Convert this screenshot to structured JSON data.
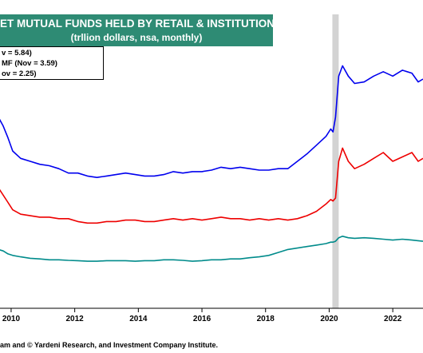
{
  "chart_data": {
    "type": "line",
    "title": "ET MUTUAL FUNDS HELD BY RETAIL & INSTITUTIONS",
    "subtitle": "(trllion dollars, nsa, monthly)",
    "legend": [
      {
        "label": "v = 5.84)",
        "color": "#0000ee"
      },
      {
        "label": "MF  (Nov = 3.59)",
        "color": "#ee0000"
      },
      {
        "label": "ov = 2.25)",
        "color": "#008b8b"
      }
    ],
    "x_ticks": [
      "2010",
      "2012",
      "2014",
      "2016",
      "2018",
      "2020",
      "2022"
    ],
    "xlim": [
      2009.6,
      2022.95
    ],
    "ylim": [
      0,
      1
    ],
    "recession_shading": [
      2020.1,
      2020.3
    ],
    "grid": false,
    "series": [
      {
        "color": "#0000ee",
        "x": [
          2009.6,
          2009.75,
          2009.9,
          2010.05,
          2010.3,
          2010.6,
          2010.9,
          2011.2,
          2011.5,
          2011.8,
          2012.1,
          2012.4,
          2012.7,
          2013.0,
          2013.3,
          2013.6,
          2013.9,
          2014.2,
          2014.5,
          2014.8,
          2015.1,
          2015.4,
          2015.7,
          2016.0,
          2016.3,
          2016.6,
          2016.9,
          2017.2,
          2017.5,
          2017.8,
          2018.1,
          2018.4,
          2018.7,
          2019.0,
          2019.3,
          2019.6,
          2019.9,
          2020.05,
          2020.12,
          2020.2,
          2020.3,
          2020.42,
          2020.6,
          2020.8,
          2021.1,
          2021.4,
          2021.7,
          2022.0,
          2022.3,
          2022.6,
          2022.8,
          2022.95
        ],
        "y": [
          0.65,
          0.62,
          0.58,
          0.535,
          0.51,
          0.5,
          0.49,
          0.485,
          0.475,
          0.46,
          0.46,
          0.45,
          0.445,
          0.45,
          0.455,
          0.46,
          0.455,
          0.45,
          0.45,
          0.455,
          0.465,
          0.46,
          0.465,
          0.465,
          0.47,
          0.48,
          0.475,
          0.48,
          0.475,
          0.47,
          0.47,
          0.475,
          0.475,
          0.5,
          0.525,
          0.555,
          0.585,
          0.61,
          0.6,
          0.65,
          0.79,
          0.825,
          0.79,
          0.765,
          0.77,
          0.79,
          0.805,
          0.79,
          0.81,
          0.8,
          0.77,
          0.78
        ]
      },
      {
        "color": "#ee0000",
        "x": [
          2009.6,
          2009.75,
          2009.9,
          2010.05,
          2010.3,
          2010.6,
          2010.9,
          2011.2,
          2011.5,
          2011.8,
          2012.1,
          2012.4,
          2012.7,
          2013.0,
          2013.3,
          2013.6,
          2013.9,
          2014.2,
          2014.5,
          2014.8,
          2015.1,
          2015.4,
          2015.7,
          2016.0,
          2016.3,
          2016.6,
          2016.9,
          2017.2,
          2017.5,
          2017.8,
          2018.1,
          2018.4,
          2018.7,
          2019.0,
          2019.3,
          2019.6,
          2019.9,
          2020.05,
          2020.12,
          2020.2,
          2020.3,
          2020.42,
          2020.6,
          2020.8,
          2021.1,
          2021.4,
          2021.7,
          2022.0,
          2022.3,
          2022.6,
          2022.8,
          2022.95
        ],
        "y": [
          0.41,
          0.385,
          0.36,
          0.335,
          0.32,
          0.315,
          0.31,
          0.31,
          0.305,
          0.305,
          0.295,
          0.29,
          0.29,
          0.295,
          0.295,
          0.3,
          0.3,
          0.295,
          0.295,
          0.3,
          0.305,
          0.3,
          0.305,
          0.3,
          0.305,
          0.31,
          0.305,
          0.305,
          0.3,
          0.305,
          0.3,
          0.305,
          0.3,
          0.305,
          0.315,
          0.33,
          0.355,
          0.37,
          0.365,
          0.375,
          0.5,
          0.545,
          0.5,
          0.475,
          0.49,
          0.51,
          0.53,
          0.5,
          0.515,
          0.53,
          0.5,
          0.51
        ]
      },
      {
        "color": "#008b8b",
        "x": [
          2009.6,
          2009.75,
          2009.9,
          2010.05,
          2010.3,
          2010.6,
          2010.9,
          2011.2,
          2011.5,
          2011.8,
          2012.1,
          2012.4,
          2012.7,
          2013.0,
          2013.3,
          2013.6,
          2013.9,
          2014.2,
          2014.5,
          2014.8,
          2015.1,
          2015.4,
          2015.7,
          2016.0,
          2016.3,
          2016.6,
          2016.9,
          2017.2,
          2017.5,
          2017.8,
          2018.1,
          2018.4,
          2018.7,
          2019.0,
          2019.3,
          2019.6,
          2019.9,
          2020.05,
          2020.12,
          2020.2,
          2020.3,
          2020.42,
          2020.6,
          2020.8,
          2021.1,
          2021.4,
          2021.7,
          2022.0,
          2022.3,
          2022.6,
          2022.8,
          2022.95
        ],
        "y": [
          0.2,
          0.195,
          0.185,
          0.18,
          0.175,
          0.17,
          0.168,
          0.165,
          0.165,
          0.163,
          0.162,
          0.16,
          0.16,
          0.162,
          0.162,
          0.162,
          0.16,
          0.162,
          0.162,
          0.165,
          0.165,
          0.163,
          0.16,
          0.162,
          0.165,
          0.165,
          0.168,
          0.168,
          0.172,
          0.175,
          0.18,
          0.19,
          0.2,
          0.205,
          0.21,
          0.215,
          0.22,
          0.225,
          0.225,
          0.228,
          0.24,
          0.245,
          0.24,
          0.238,
          0.24,
          0.238,
          0.235,
          0.232,
          0.235,
          0.232,
          0.23,
          0.228
        ]
      }
    ]
  },
  "source_text": "am and © Yardeni Research, and Investment Company Institute."
}
